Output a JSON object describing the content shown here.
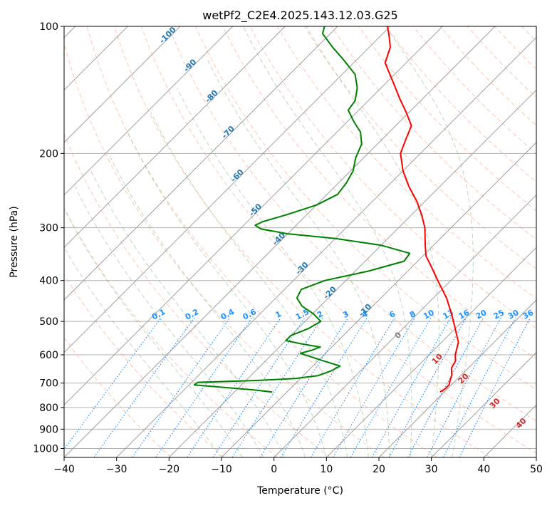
{
  "chart_data": {
    "type": "line",
    "title": "wetPf2_C2E4.2025.143.12.03.G25",
    "xlabel": "Temperature (°C)",
    "ylabel": "Pressure (hPa)",
    "xlim": [
      -40,
      50
    ],
    "ylim": [
      1050,
      100
    ],
    "y_scale": "log",
    "x_ticks": [
      "−40",
      "−30",
      "−20",
      "−10",
      "0",
      "10",
      "20",
      "30",
      "40",
      "50"
    ],
    "x_tick_values": [
      -40,
      -30,
      -20,
      -10,
      0,
      10,
      20,
      30,
      40,
      50
    ],
    "y_ticks": [
      "100",
      "200",
      "300",
      "400",
      "500",
      "600",
      "700",
      "800",
      "900",
      "1000"
    ],
    "y_tick_values": [
      100,
      200,
      300,
      400,
      500,
      600,
      700,
      800,
      900,
      1000
    ],
    "grid": true,
    "colors": {
      "temperature": "#ff0000",
      "dewpoint": "#008000",
      "isotherm": "#a0a0a0",
      "dry_adiabat": "#ffa07a",
      "moist_adiabat": "#8fbc8f",
      "mixing_ratio": "#1e90ff",
      "isotherm_label": "#1f77b4",
      "dry_adiabat_label": "#d62728"
    },
    "series": [
      {
        "id": "temperature",
        "points": [
          {
            "p": 735,
            "t": 19.2
          },
          {
            "p": 720,
            "t": 19.6
          },
          {
            "p": 705,
            "t": 19.5
          },
          {
            "p": 690,
            "t": 18.9
          },
          {
            "p": 670,
            "t": 18.2
          },
          {
            "p": 645,
            "t": 16.8
          },
          {
            "p": 620,
            "t": 16.2
          },
          {
            "p": 600,
            "t": 15.0
          },
          {
            "p": 560,
            "t": 13.2
          },
          {
            "p": 520,
            "t": 10.0
          },
          {
            "p": 480,
            "t": 6.5
          },
          {
            "p": 440,
            "t": 2.5
          },
          {
            "p": 400,
            "t": -2.5
          },
          {
            "p": 370,
            "t": -6.5
          },
          {
            "p": 350,
            "t": -9.4
          },
          {
            "p": 330,
            "t": -11.6
          },
          {
            "p": 300,
            "t": -15.0
          },
          {
            "p": 280,
            "t": -18.0
          },
          {
            "p": 260,
            "t": -21.5
          },
          {
            "p": 240,
            "t": -25.8
          },
          {
            "p": 220,
            "t": -30.0
          },
          {
            "p": 200,
            "t": -33.8
          },
          {
            "p": 185,
            "t": -35.5
          },
          {
            "p": 172,
            "t": -37.0
          },
          {
            "p": 160,
            "t": -40.5
          },
          {
            "p": 148,
            "t": -44.5
          },
          {
            "p": 135,
            "t": -49.0
          },
          {
            "p": 122,
            "t": -54.0
          },
          {
            "p": 112,
            "t": -56.0
          },
          {
            "p": 105,
            "t": -58.5
          },
          {
            "p": 100,
            "t": -60.5
          }
        ]
      },
      {
        "id": "dewpoint",
        "points": [
          {
            "p": 735,
            "t": -12.8
          },
          {
            "p": 727,
            "t": -16.5
          },
          {
            "p": 718,
            "t": -22.0
          },
          {
            "p": 707,
            "t": -29.0
          },
          {
            "p": 697,
            "t": -28.8
          },
          {
            "p": 690,
            "t": -18.0
          },
          {
            "p": 683,
            "t": -11.0
          },
          {
            "p": 672,
            "t": -7.2
          },
          {
            "p": 655,
            "t": -5.6
          },
          {
            "p": 638,
            "t": -4.8
          },
          {
            "p": 620,
            "t": -9.0
          },
          {
            "p": 605,
            "t": -12.5
          },
          {
            "p": 595,
            "t": -14.8
          },
          {
            "p": 585,
            "t": -13.2
          },
          {
            "p": 575,
            "t": -12.2
          },
          {
            "p": 565,
            "t": -16.5
          },
          {
            "p": 555,
            "t": -20.0
          },
          {
            "p": 540,
            "t": -20.0
          },
          {
            "p": 520,
            "t": -18.0
          },
          {
            "p": 500,
            "t": -17.0
          },
          {
            "p": 480,
            "t": -19.8
          },
          {
            "p": 460,
            "t": -23.5
          },
          {
            "p": 440,
            "t": -26.0
          },
          {
            "p": 420,
            "t": -26.8
          },
          {
            "p": 400,
            "t": -24.0
          },
          {
            "p": 380,
            "t": -17.5
          },
          {
            "p": 360,
            "t": -12.6
          },
          {
            "p": 345,
            "t": -13.0
          },
          {
            "p": 330,
            "t": -20.0
          },
          {
            "p": 318,
            "t": -30.0
          },
          {
            "p": 310,
            "t": -40.0
          },
          {
            "p": 302,
            "t": -46.0
          },
          {
            "p": 296,
            "t": -47.8
          },
          {
            "p": 290,
            "t": -47.0
          },
          {
            "p": 280,
            "t": -44.0
          },
          {
            "p": 265,
            "t": -40.0
          },
          {
            "p": 250,
            "t": -38.0
          },
          {
            "p": 235,
            "t": -38.5
          },
          {
            "p": 220,
            "t": -39.5
          },
          {
            "p": 205,
            "t": -41.5
          },
          {
            "p": 190,
            "t": -43.0
          },
          {
            "p": 178,
            "t": -45.5
          },
          {
            "p": 168,
            "t": -48.8
          },
          {
            "p": 158,
            "t": -52.0
          },
          {
            "p": 150,
            "t": -52.5
          },
          {
            "p": 140,
            "t": -54.5
          },
          {
            "p": 130,
            "t": -57.5
          },
          {
            "p": 120,
            "t": -62.5
          },
          {
            "p": 112,
            "t": -67.0
          },
          {
            "p": 104,
            "t": -71.5
          },
          {
            "p": 100,
            "t": -72.5
          }
        ]
      }
    ],
    "isotherm_labels": [
      {
        "text": "-100",
        "t": -100
      },
      {
        "text": "-90",
        "t": -90
      },
      {
        "text": "-80",
        "t": -80
      },
      {
        "text": "-70",
        "t": -70
      },
      {
        "text": "-60",
        "t": -60
      },
      {
        "text": "-50",
        "t": -50
      },
      {
        "text": "-40",
        "t": -40
      },
      {
        "text": "-30",
        "t": -30
      },
      {
        "text": "-20",
        "t": -20
      },
      {
        "text": "-10",
        "t": -10
      },
      {
        "text": "0",
        "t": 0
      },
      {
        "text": "10",
        "t": 10
      },
      {
        "text": "20",
        "t": 20
      },
      {
        "text": "30",
        "t": 30
      },
      {
        "text": "40",
        "t": 40
      }
    ],
    "mixing_ratio_labels": [
      {
        "text": "0.1",
        "w": 0.1
      },
      {
        "text": "0.2",
        "w": 0.2
      },
      {
        "text": "0.4",
        "w": 0.4
      },
      {
        "text": "0.6",
        "w": 0.6
      },
      {
        "text": "1",
        "w": 1
      },
      {
        "text": "1.5",
        "w": 1.5
      },
      {
        "text": "2",
        "w": 2
      },
      {
        "text": "3",
        "w": 3
      },
      {
        "text": "4",
        "w": 4
      },
      {
        "text": "6",
        "w": 6
      },
      {
        "text": "8",
        "w": 8
      },
      {
        "text": "10",
        "w": 10
      },
      {
        "text": "13",
        "w": 13
      },
      {
        "text": "16",
        "w": 16
      },
      {
        "text": "20",
        "w": 20
      },
      {
        "text": "25",
        "w": 25
      },
      {
        "text": "30",
        "w": 30
      },
      {
        "text": "36",
        "w": 36
      }
    ]
  }
}
